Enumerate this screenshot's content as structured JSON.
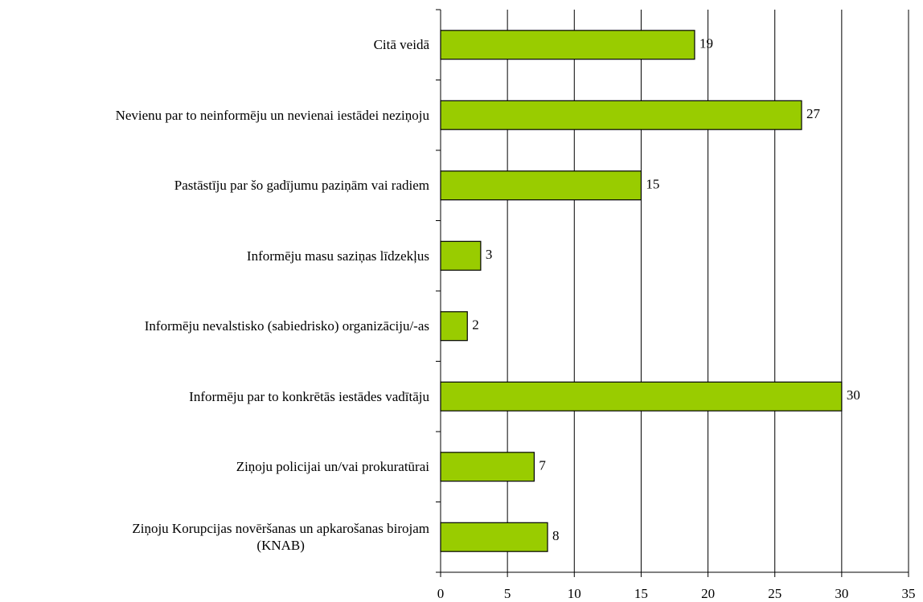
{
  "chart_data": {
    "type": "hbar",
    "categories": [
      "Citā veidā",
      "Nevienu par to neinformēju un nevienai iestādei neziņoju",
      "Pastāstīju par šo gadījumu paziņām vai radiem",
      "Informēju masu saziņas līdzekļus",
      "Informēju nevalstisko (sabiedrisko) organizāciju/-as",
      "Informēju par to konkrētās iestādes vadītāju",
      "Ziņoju policijai un/vai prokuratūrai",
      "Ziņoju Korupcijas novēršanas un apkarošanas birojam\n(KNAB)"
    ],
    "values": [
      19,
      27,
      15,
      3,
      2,
      30,
      7,
      8
    ],
    "color": "#99cc00",
    "xlim": [
      0,
      35
    ],
    "xticks": [
      0,
      5,
      10,
      15,
      20,
      25,
      30,
      35
    ],
    "grid": true
  }
}
